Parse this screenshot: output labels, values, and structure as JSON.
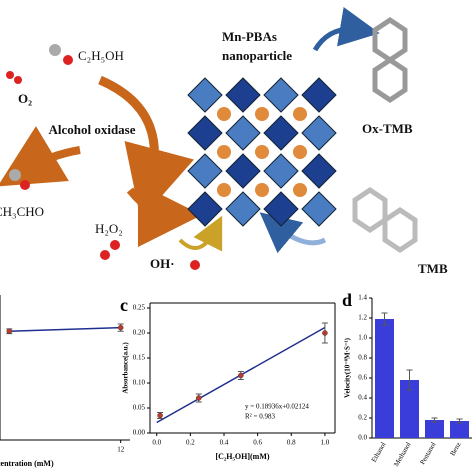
{
  "diagram": {
    "nanoparticle": "Mn-PBAs",
    "nanoparticle_line2": "nanoparticle",
    "substrate": "C₂H₅OH",
    "oxygen": "O₂",
    "enzyme": "Alcohol oxidase",
    "product": "CH₃CHO",
    "peroxide": "H₂O₂",
    "radical": "OH·",
    "oxidized": "Ox-TMB",
    "reduced": "TMB"
  },
  "chart_data": [
    {
      "type": "line",
      "x": [
        0,
        12
      ],
      "values": [
        0.9,
        0.93
      ],
      "errors": [
        0.02,
        0.03
      ],
      "xlim": [
        -1,
        13
      ],
      "ylim": [
        0,
        1.2
      ],
      "xticks": [
        12
      ],
      "xlabel": "centration (mM)",
      "color": "#1f2f8f",
      "marker_color": "#c0392b"
    },
    {
      "type": "scatter",
      "panel": "c",
      "x": [
        0.02,
        0.25,
        0.5,
        1.0
      ],
      "values": [
        0.035,
        0.07,
        0.115,
        0.2
      ],
      "errors": [
        0.006,
        0.008,
        0.008,
        0.02
      ],
      "fit": {
        "x": [
          0,
          1
        ],
        "y": [
          0.021,
          0.211
        ]
      },
      "xlim": [
        -0.04,
        1.06
      ],
      "ylim": [
        0,
        0.26
      ],
      "xticks": [
        {
          "value": 0,
          "label": "0.0"
        },
        {
          "value": 0.2,
          "label": "0.2"
        },
        {
          "value": 0.4,
          "label": "0.4"
        },
        {
          "value": 0.6,
          "label": "0.6"
        },
        {
          "value": 0.8,
          "label": "0.8"
        },
        {
          "value": 1,
          "label": "1.0"
        }
      ],
      "yticks": [
        {
          "value": 0,
          "label": "0.00"
        },
        {
          "value": 0.05,
          "label": "0.05"
        },
        {
          "value": 0.1,
          "label": "0.10"
        },
        {
          "value": 0.15,
          "label": "0.15"
        },
        {
          "value": 0.2,
          "label": "0.20"
        },
        {
          "value": 0.25,
          "label": "0.25"
        }
      ],
      "xlabel": "[C₂H₅OH](mM)",
      "ylabel": "Absorbance(a.u.)",
      "annotations": [
        "y = 0.18936x+0.02124",
        "R² = 0.983"
      ],
      "color": "#1f2f8f",
      "marker_color": "#c0392b"
    },
    {
      "type": "bar",
      "panel": "d",
      "categories": [
        "Ethanol",
        "Methanol",
        "Pentanol",
        "Benz"
      ],
      "values": [
        1.19,
        0.58,
        0.18,
        0.17
      ],
      "errors": [
        0.06,
        0.1,
        0.02,
        0.02
      ],
      "ylim": [
        0,
        1.4
      ],
      "yticks": [
        {
          "value": 0,
          "label": "0.0"
        },
        {
          "value": 0.2,
          "label": "0.2"
        },
        {
          "value": 0.4,
          "label": "0.4"
        },
        {
          "value": 0.6,
          "label": "0.6"
        },
        {
          "value": 0.8,
          "label": "0.8"
        },
        {
          "value": 1,
          "label": "1.0"
        },
        {
          "value": 1.2,
          "label": "1.2"
        },
        {
          "value": 1.4,
          "label": "1.4"
        }
      ],
      "ylabel": "Velocity(10⁻⁸M·S⁻¹)",
      "color": "#3b3ddb"
    }
  ]
}
